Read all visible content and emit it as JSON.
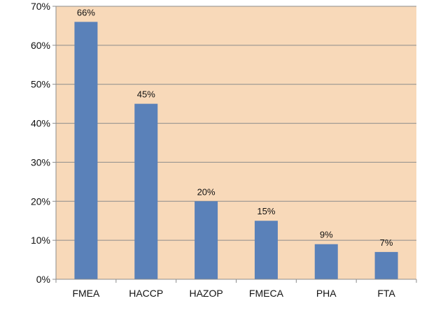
{
  "chart_data": {
    "type": "bar",
    "title": "",
    "xlabel": "",
    "ylabel": "",
    "categories": [
      "FMEA",
      "HACCP",
      "HAZOP",
      "FMECA",
      "PHA",
      "FTA"
    ],
    "values": [
      66,
      45,
      20,
      15,
      9,
      7
    ],
    "data_labels": [
      "66%",
      "45%",
      "20%",
      "15%",
      "9%",
      "7%"
    ],
    "ylim": [
      0,
      70
    ],
    "yticks": [
      0,
      10,
      20,
      30,
      40,
      50,
      60,
      70
    ],
    "ytick_labels": [
      "0%",
      "10%",
      "20%",
      "30%",
      "40%",
      "50%",
      "60%",
      "70%"
    ],
    "grid": true,
    "legend": "none",
    "colors": {
      "bar": "#5a81b9",
      "plot_background": "#f8d9b9",
      "gridline": "#8c8c8c",
      "axis": "#8c8c8c"
    }
  }
}
